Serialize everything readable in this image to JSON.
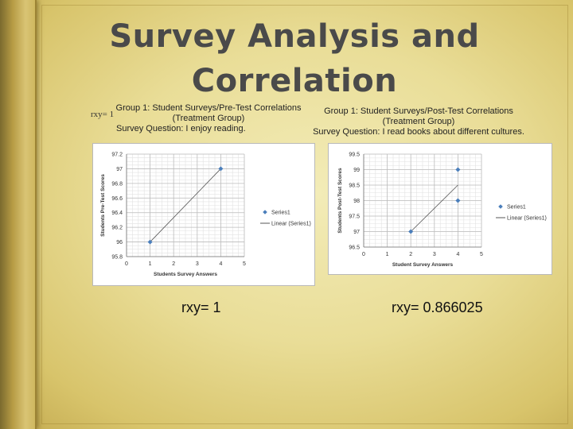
{
  "slide": {
    "title_line1": "Survey Analysis and",
    "title_line2": "Correlation",
    "rxy_small": "rxy= 1",
    "left": {
      "label_line1": "Group 1: Student Surveys/Pre-Test Correlations",
      "label_line2": "(Treatment Group)",
      "label_line3": "Survey Question: I enjoy reading.",
      "result": "rxy= 1"
    },
    "right": {
      "label_line1": "Group 1: Student Surveys/Post-Test Correlations",
      "label_line2": "(Treatment Group)",
      "label_line3": "Survey Question: I read books about different cultures.",
      "result": "rxy= 0.866025"
    }
  },
  "chart_data": [
    {
      "type": "scatter",
      "title": "",
      "xlabel": "Students Survey Answers",
      "ylabel": "Students Pre-Test Scores",
      "xlim": [
        0,
        5
      ],
      "ylim": [
        95.8,
        97.2
      ],
      "xticks": [
        "0",
        "1",
        "2",
        "3",
        "4",
        "5"
      ],
      "yticks": [
        "95.8",
        "96",
        "96.2",
        "96.4",
        "96.6",
        "96.8",
        "97",
        "97.2"
      ],
      "grid": true,
      "legend": [
        "Series1",
        "Linear (Series1)"
      ],
      "legend_position": "right",
      "series": [
        {
          "name": "Series1",
          "x": [
            1,
            4
          ],
          "y": [
            96,
            97
          ]
        }
      ],
      "trendline": {
        "name": "Linear (Series1)",
        "x": [
          1,
          4
        ],
        "y": [
          96,
          97
        ]
      },
      "colors": {
        "marker": "#4a7ebb",
        "trend": "#555555"
      }
    },
    {
      "type": "scatter",
      "title": "",
      "xlabel": "Student Survey Answers",
      "ylabel": "Students Post-Test Scores",
      "xlim": [
        0,
        5
      ],
      "ylim": [
        96.5,
        99.5
      ],
      "xticks": [
        "0",
        "1",
        "2",
        "3",
        "4",
        "5"
      ],
      "yticks": [
        "96.5",
        "97",
        "97.5",
        "98",
        "98.5",
        "99",
        "99.5"
      ],
      "grid": true,
      "legend": [
        "Series1",
        "Linear (Series1)"
      ],
      "legend_position": "right",
      "series": [
        {
          "name": "Series1",
          "x": [
            2,
            4,
            4
          ],
          "y": [
            97,
            99,
            98
          ]
        }
      ],
      "trendline": {
        "name": "Linear (Series1)",
        "x": [
          2,
          4
        ],
        "y": [
          97,
          98.5
        ]
      },
      "colors": {
        "marker": "#4a7ebb",
        "trend": "#555555"
      }
    }
  ]
}
